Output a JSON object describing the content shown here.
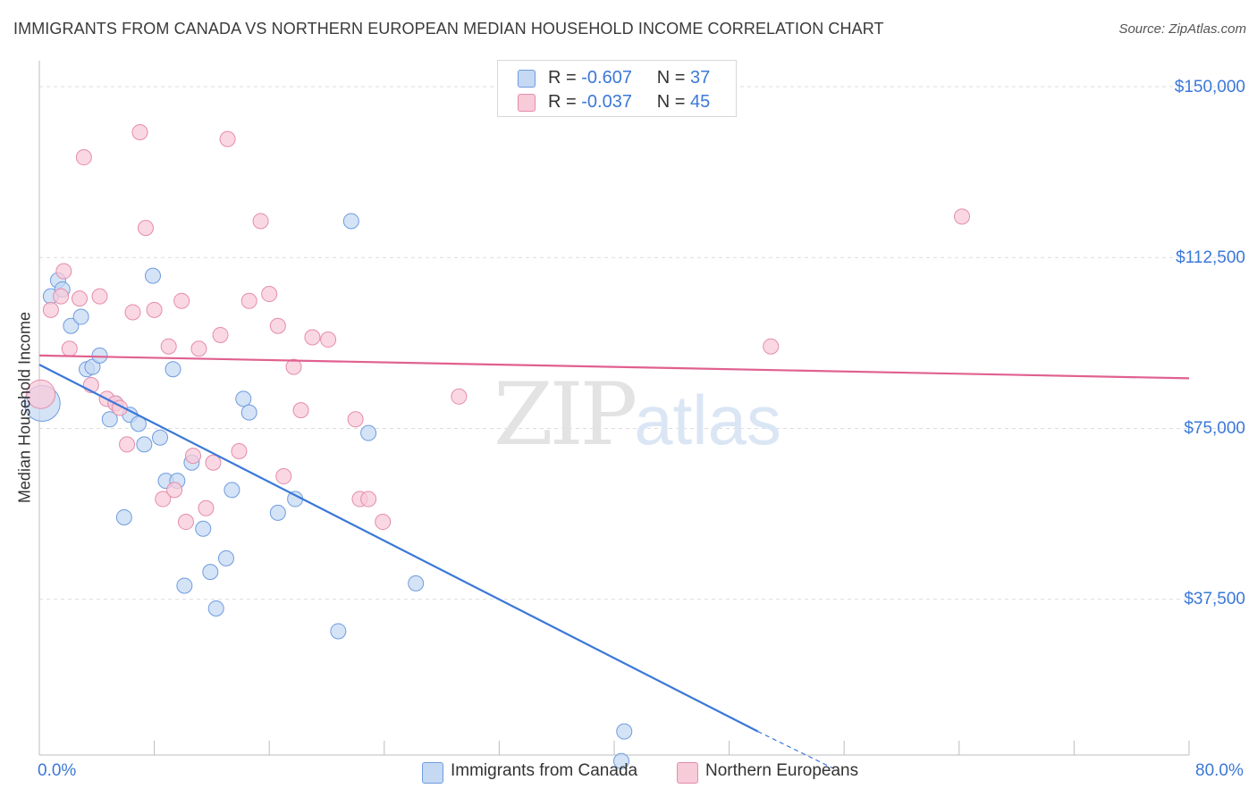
{
  "title": "IMMIGRANTS FROM CANADA VS NORTHERN EUROPEAN MEDIAN HOUSEHOLD INCOME CORRELATION CHART",
  "source": "Source: ZipAtlas.com",
  "watermark": {
    "zip": "ZIP",
    "atlas": "atlas"
  },
  "colors": {
    "blue": "#3b78d8",
    "blue_fill": "#c5d9f3",
    "pink": "#e0608f",
    "pink_fill": "#f8cbd9",
    "grid": "#dcdcdc"
  },
  "stats": [
    {
      "r_label": "R =",
      "r_value": "-0.607",
      "n_label": "N =",
      "n_value": "37",
      "color": "#c5d9f3",
      "border": "#6f9ce0"
    },
    {
      "r_label": "R =",
      "r_value": "-0.037",
      "n_label": "N =",
      "n_value": "45",
      "color": "#f8cbd9",
      "border": "#e58cab"
    }
  ],
  "legend": [
    "Immigrants from Canada",
    "Northern Europeans"
  ],
  "chart_data": {
    "type": "scatter",
    "title": "IMMIGRANTS FROM CANADA VS NORTHERN EUROPEAN MEDIAN HOUSEHOLD INCOME CORRELATION CHART",
    "xlabel": "",
    "ylabel": "Median Household Income",
    "xlim": [
      0,
      80
    ],
    "ylim": [
      0,
      150000
    ],
    "x_tick_labels": [
      "0.0%",
      "80.0%"
    ],
    "y_ticks": [
      37500,
      75000,
      112500,
      150000
    ],
    "y_tick_labels": [
      "$37,500",
      "$75,000",
      "$112,500",
      "$150,000"
    ],
    "grid": true,
    "legend_position": "bottom",
    "series": [
      {
        "name": "Immigrants from Canada",
        "color": "#3b78d8",
        "points": [
          [
            0.2,
            80500
          ],
          [
            0.8,
            104000
          ],
          [
            1.3,
            107500
          ],
          [
            1.6,
            105500
          ],
          [
            2.2,
            97500
          ],
          [
            2.9,
            99500
          ],
          [
            3.3,
            88000
          ],
          [
            3.7,
            88500
          ],
          [
            4.2,
            91000
          ],
          [
            4.9,
            77000
          ],
          [
            5.3,
            80500
          ],
          [
            5.9,
            55500
          ],
          [
            6.3,
            78000
          ],
          [
            6.9,
            76000
          ],
          [
            7.3,
            71500
          ],
          [
            7.9,
            108500
          ],
          [
            8.4,
            73000
          ],
          [
            8.8,
            63500
          ],
          [
            9.3,
            88000
          ],
          [
            9.6,
            63500
          ],
          [
            10.1,
            40500
          ],
          [
            10.6,
            67500
          ],
          [
            11.4,
            53000
          ],
          [
            11.9,
            43500
          ],
          [
            12.3,
            35500
          ],
          [
            13.0,
            46500
          ],
          [
            13.4,
            61500
          ],
          [
            14.2,
            81500
          ],
          [
            14.6,
            78500
          ],
          [
            16.6,
            56500
          ],
          [
            17.8,
            59500
          ],
          [
            20.8,
            30500
          ],
          [
            21.7,
            120500
          ],
          [
            22.9,
            74000
          ],
          [
            26.2,
            41000
          ],
          [
            40.7,
            8500
          ],
          [
            40.5,
            2000
          ]
        ],
        "trend": {
          "x": [
            0,
            50
          ],
          "y": [
            89000,
            8500
          ],
          "dashed_to": {
            "x": 55.5,
            "y": 0
          }
        }
      },
      {
        "name": "Northern Europeans",
        "color": "#e0608f",
        "points": [
          [
            0.1,
            82500
          ],
          [
            0.8,
            101000
          ],
          [
            1.5,
            104000
          ],
          [
            1.7,
            109500
          ],
          [
            2.1,
            92500
          ],
          [
            2.8,
            103500
          ],
          [
            3.1,
            134500
          ],
          [
            3.6,
            84500
          ],
          [
            4.2,
            104000
          ],
          [
            4.7,
            81500
          ],
          [
            5.3,
            80500
          ],
          [
            5.6,
            79500
          ],
          [
            6.1,
            71500
          ],
          [
            6.5,
            100500
          ],
          [
            7.0,
            140000
          ],
          [
            7.4,
            119000
          ],
          [
            8.0,
            101000
          ],
          [
            8.6,
            59500
          ],
          [
            9.0,
            93000
          ],
          [
            9.4,
            61500
          ],
          [
            9.9,
            103000
          ],
          [
            10.2,
            54500
          ],
          [
            10.7,
            69000
          ],
          [
            11.1,
            92500
          ],
          [
            11.6,
            57500
          ],
          [
            12.1,
            67500
          ],
          [
            12.6,
            95500
          ],
          [
            13.1,
            138500
          ],
          [
            13.9,
            70000
          ],
          [
            14.6,
            103000
          ],
          [
            15.4,
            120500
          ],
          [
            16.0,
            104500
          ],
          [
            16.6,
            97500
          ],
          [
            17.0,
            64500
          ],
          [
            17.7,
            88500
          ],
          [
            18.2,
            79000
          ],
          [
            19.0,
            95000
          ],
          [
            20.1,
            94500
          ],
          [
            22.0,
            77000
          ],
          [
            22.3,
            59500
          ],
          [
            22.9,
            59500
          ],
          [
            23.9,
            54500
          ],
          [
            29.2,
            82000
          ],
          [
            50.9,
            93000
          ],
          [
            64.2,
            121500
          ]
        ],
        "trend": {
          "x": [
            0,
            80
          ],
          "y": [
            91000,
            86000
          ]
        }
      }
    ]
  }
}
